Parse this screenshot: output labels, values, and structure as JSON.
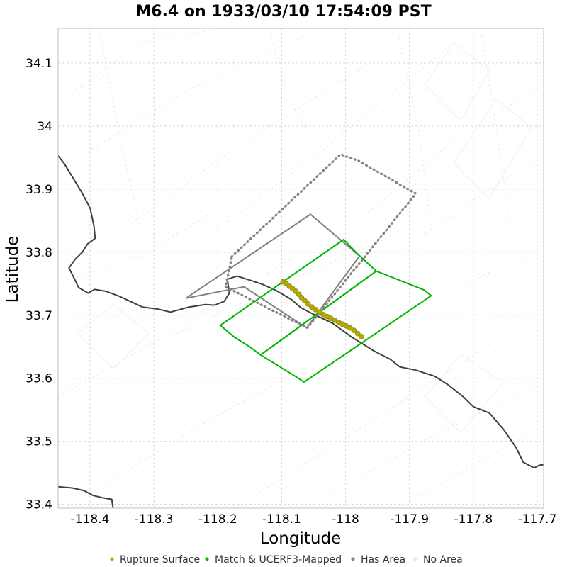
{
  "chart_data": {
    "type": "scatter",
    "title": "M6.4 on 1933/03/10 17:54:09 PST",
    "xlabel": "Longitude",
    "ylabel": "Latitude",
    "xlim": [
      -118.45,
      -117.69
    ],
    "ylim": [
      33.394,
      34.155
    ],
    "xticks": [
      -118.4,
      -118.3,
      -118.2,
      -118.1,
      -118.0,
      -117.9,
      -117.8,
      -117.7
    ],
    "xtick_labels": [
      "-118.4",
      "-118.3",
      "-118.2",
      "-118.1",
      "-118",
      "-117.9",
      "-117.8",
      "-117.7"
    ],
    "yticks": [
      33.4,
      33.5,
      33.6,
      33.7,
      33.8,
      33.9,
      34.0,
      34.1
    ],
    "ytick_labels": [
      "33.4",
      "33.5",
      "33.6",
      "33.7",
      "33.8",
      "33.9",
      "34",
      "34.1"
    ],
    "grid": true,
    "legend_position": "bottom",
    "colors": {
      "rupture": "#c8a000",
      "rupture_edge": "#7aa020",
      "ucerf3": "#00b400",
      "has_area": "#808080",
      "no_area": "#e6e6e6",
      "coastline": "#404040",
      "grid": "#d8d8d8"
    },
    "legend": [
      {
        "label": "Rupture Surface",
        "color": "#c8a000"
      },
      {
        "label": "Match & UCERF3-Mapped",
        "color": "#00b400"
      },
      {
        "label": "Has Area",
        "color": "#808080"
      },
      {
        "label": "No Area",
        "color": "#e6e6e6"
      }
    ],
    "series": [
      {
        "name": "Rupture Surface",
        "style": "points",
        "points": [
          [
            -118.098,
            33.753
          ],
          [
            -118.093,
            33.75
          ],
          [
            -118.088,
            33.746
          ],
          [
            -118.083,
            33.742
          ],
          [
            -118.078,
            33.738
          ],
          [
            -118.073,
            33.733
          ],
          [
            -118.069,
            33.728
          ],
          [
            -118.064,
            33.723
          ],
          [
            -118.059,
            33.718
          ],
          [
            -118.053,
            33.713
          ],
          [
            -118.047,
            33.709
          ],
          [
            -118.041,
            33.705
          ],
          [
            -118.035,
            33.701
          ],
          [
            -118.029,
            33.698
          ],
          [
            -118.023,
            33.695
          ],
          [
            -118.017,
            33.692
          ],
          [
            -118.011,
            33.689
          ],
          [
            -118.005,
            33.686
          ],
          [
            -117.999,
            33.683
          ],
          [
            -117.993,
            33.68
          ],
          [
            -117.987,
            33.676
          ],
          [
            -117.981,
            33.671
          ],
          [
            -117.975,
            33.666
          ]
        ]
      },
      {
        "name": "Match & UCERF3-Mapped",
        "style": "polygons",
        "polygons": [
          [
            [
              -118.196,
              33.684
            ],
            [
              -118.003,
              33.82
            ],
            [
              -117.982,
              33.798
            ],
            [
              -117.952,
              33.77
            ],
            [
              -118.133,
              33.637
            ],
            [
              -118.15,
              33.65
            ],
            [
              -118.174,
              33.665
            ],
            [
              -118.196,
              33.684
            ]
          ],
          [
            [
              -118.133,
              33.637
            ],
            [
              -117.952,
              33.77
            ],
            [
              -117.877,
              33.74
            ],
            [
              -117.866,
              33.731
            ],
            [
              -118.065,
              33.594
            ],
            [
              -118.08,
              33.604
            ],
            [
              -118.133,
              33.637
            ]
          ]
        ]
      },
      {
        "name": "Has Area",
        "style": "polygons",
        "polygons": [
          [
            [
              -118.25,
              33.727
            ],
            [
              -118.055,
              33.86
            ],
            [
              -117.978,
              33.794
            ],
            [
              -118.061,
              33.68
            ],
            [
              -118.159,
              33.745
            ],
            [
              -118.25,
              33.727
            ]
          ],
          [
            [
              -118.178,
              33.793
            ],
            [
              -118.008,
              33.955
            ],
            [
              -117.98,
              33.945
            ],
            [
              -117.89,
              33.893
            ],
            [
              -118.06,
              33.68
            ],
            [
              -118.188,
              33.745
            ],
            [
              -118.178,
              33.793
            ]
          ]
        ]
      },
      {
        "name": "Coastline",
        "style": "line",
        "lines": [
          [
            [
              -118.45,
              33.953
            ],
            [
              -118.44,
              33.94
            ],
            [
              -118.428,
              33.92
            ],
            [
              -118.413,
              33.895
            ],
            [
              -118.4,
              33.87
            ],
            [
              -118.394,
              33.842
            ],
            [
              -118.392,
              33.822
            ],
            [
              -118.404,
              33.813
            ],
            [
              -118.412,
              33.8
            ],
            [
              -118.423,
              33.789
            ],
            [
              -118.433,
              33.775
            ],
            [
              -118.425,
              33.759
            ],
            [
              -118.418,
              33.744
            ],
            [
              -118.403,
              33.735
            ],
            [
              -118.393,
              33.741
            ],
            [
              -118.375,
              33.738
            ],
            [
              -118.354,
              33.73
            ],
            [
              -118.318,
              33.713
            ],
            [
              -118.295,
              33.71
            ],
            [
              -118.274,
              33.705
            ],
            [
              -118.245,
              33.713
            ],
            [
              -118.22,
              33.717
            ],
            [
              -118.205,
              33.716
            ],
            [
              -118.19,
              33.722
            ],
            [
              -118.182,
              33.735
            ],
            [
              -118.185,
              33.757
            ],
            [
              -118.17,
              33.762
            ],
            [
              -118.148,
              33.755
            ],
            [
              -118.13,
              33.749
            ],
            [
              -118.11,
              33.74
            ],
            [
              -118.085,
              33.725
            ],
            [
              -118.07,
              33.712
            ],
            [
              -118.053,
              33.703
            ],
            [
              -118.02,
              33.687
            ],
            [
              -117.99,
              33.665
            ],
            [
              -117.955,
              33.643
            ],
            [
              -117.93,
              33.63
            ],
            [
              -117.915,
              33.618
            ],
            [
              -117.89,
              33.613
            ],
            [
              -117.86,
              33.603
            ],
            [
              -117.84,
              33.59
            ],
            [
              -117.815,
              33.57
            ],
            [
              -117.8,
              33.555
            ],
            [
              -117.775,
              33.545
            ],
            [
              -117.752,
              33.518
            ],
            [
              -117.733,
              33.49
            ],
            [
              -117.722,
              33.467
            ],
            [
              -117.705,
              33.458
            ],
            [
              -117.697,
              33.462
            ],
            [
              -117.69,
              33.463
            ]
          ],
          [
            [
              -118.45,
              33.428
            ],
            [
              -118.428,
              33.426
            ],
            [
              -118.41,
              33.422
            ],
            [
              -118.395,
              33.414
            ],
            [
              -118.378,
              33.41
            ],
            [
              -118.366,
              33.408
            ],
            [
              -118.364,
              33.394
            ]
          ]
        ]
      }
    ]
  }
}
